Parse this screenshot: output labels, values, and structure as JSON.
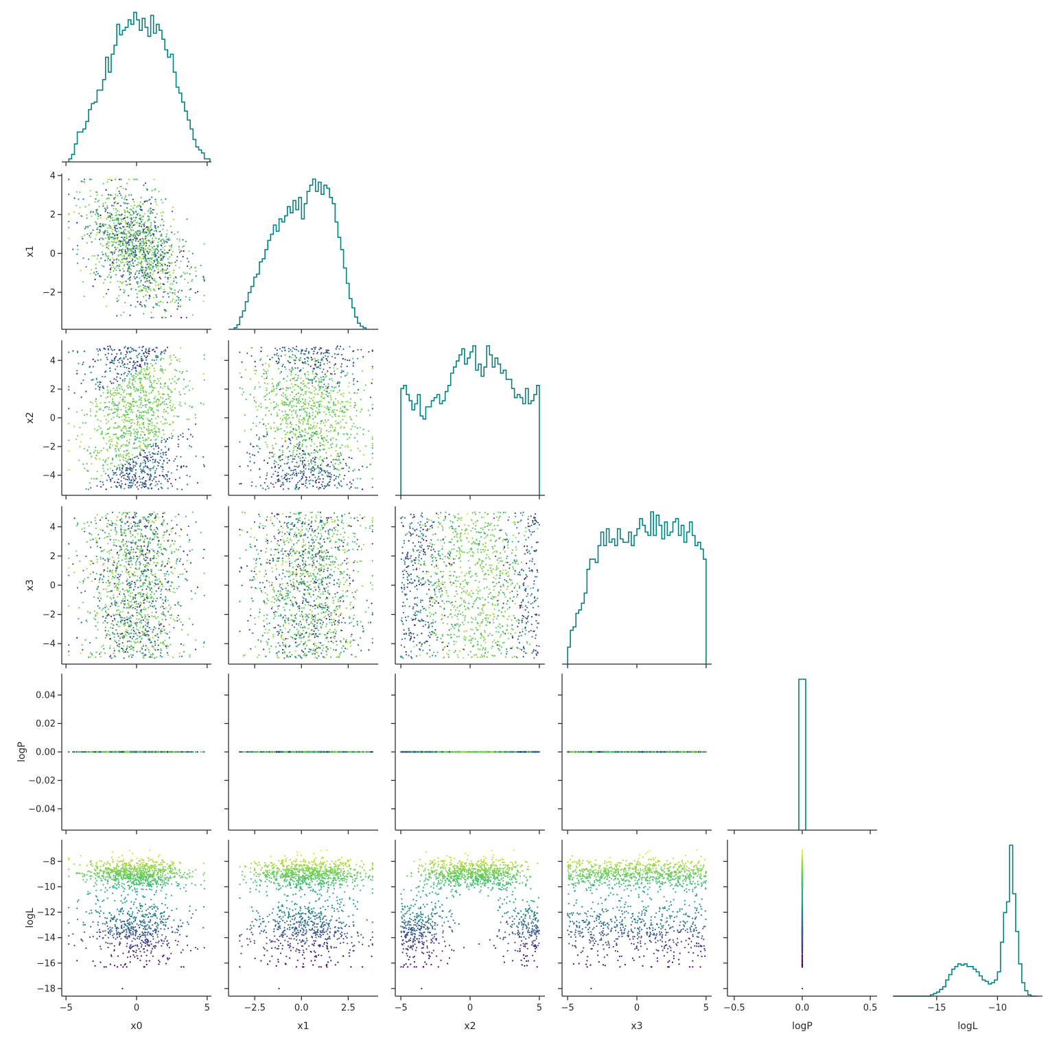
{
  "chart_data": {
    "type": "corner-plot",
    "variables": [
      "x0",
      "x1",
      "x2",
      "x3",
      "logP",
      "logL"
    ],
    "colors": {
      "histogram": "#008080",
      "scatter_colormap": "viridis",
      "scatter_color_variable": "logL",
      "axes": "#262626"
    },
    "axes": {
      "x0": {
        "range": [
          -5.3,
          5.3
        ],
        "ticks": [
          -5,
          0,
          5
        ],
        "tick_labels": [
          "−5",
          "0",
          "5"
        ]
      },
      "x1": {
        "range": [
          -3.9,
          4.1
        ],
        "ticks": [
          -2.5,
          0,
          2.5
        ],
        "tick_labels": [
          "−2.5",
          "0.0",
          "2.5"
        ],
        "row_ticks": [
          -2,
          0,
          2,
          4
        ],
        "row_tick_labels": [
          "−2",
          "0",
          "2",
          "4"
        ]
      },
      "x2": {
        "range": [
          -5.4,
          5.4
        ],
        "ticks": [
          -5,
          0,
          5
        ],
        "tick_labels": [
          "−5",
          "0",
          "5"
        ],
        "row_ticks": [
          -4,
          -2,
          0,
          2,
          4
        ],
        "row_tick_labels": [
          "−4",
          "−2",
          "0",
          "2",
          "4"
        ]
      },
      "x3": {
        "range": [
          -5.4,
          5.4
        ],
        "ticks": [
          -5,
          0,
          5
        ],
        "tick_labels": [
          "−5",
          "0",
          "5"
        ],
        "row_ticks": [
          -4,
          -2,
          0,
          2,
          4
        ],
        "row_tick_labels": [
          "−4",
          "−2",
          "0",
          "2",
          "4"
        ]
      },
      "logP": {
        "range": [
          -0.55,
          0.55
        ],
        "ticks": [
          -0.5,
          0,
          0.5
        ],
        "tick_labels": [
          "−0.5",
          "0.0",
          "0.5"
        ],
        "row_range": [
          -0.055,
          0.055
        ],
        "row_ticks": [
          -0.04,
          -0.02,
          0,
          0.02,
          0.04
        ],
        "row_tick_labels": [
          "−0.04",
          "−0.02",
          "0.00",
          "0.02",
          "0.04"
        ]
      },
      "logL": {
        "range": [
          -18.6,
          -6.3
        ],
        "ticks": [
          -15,
          -10
        ],
        "tick_labels": [
          "−15",
          "−10"
        ],
        "row_ticks": [
          -18,
          -16,
          -14,
          -12,
          -10,
          -8
        ],
        "row_tick_labels": [
          "−18",
          "−16",
          "−14",
          "−12",
          "−10",
          "−8"
        ]
      }
    },
    "histograms": {
      "x0": {
        "bin_start": -4.8,
        "bin_width": 0.2,
        "counts": [
          2,
          5,
          12,
          20,
          20,
          22,
          27,
          35,
          39,
          40,
          48,
          48,
          55,
          70,
          60,
          72,
          78,
          92,
          85,
          88,
          90,
          95,
          92,
          100,
          95,
          88,
          96,
          90,
          84,
          98,
          86,
          92,
          88,
          82,
          75,
          70,
          72,
          60,
          50,
          46,
          40,
          34,
          28,
          22,
          15,
          10,
          8,
          6,
          2,
          2
        ]
      },
      "x1": {
        "bin_start": -3.6,
        "bin_width": 0.15,
        "counts": [
          1,
          3,
          8,
          12,
          18,
          24,
          28,
          34,
          36,
          44,
          46,
          52,
          58,
          62,
          68,
          64,
          72,
          70,
          74,
          80,
          76,
          84,
          78,
          86,
          72,
          82,
          90,
          94,
          98,
          90,
          96,
          88,
          94,
          92,
          86,
          82,
          70,
          60,
          52,
          40,
          30,
          20,
          14,
          8,
          4,
          2,
          1
        ]
      },
      "x2": {
        "bin_start": -5.0,
        "bin_width": 0.2,
        "counts": [
          70,
          72,
          66,
          62,
          56,
          60,
          66,
          52,
          50,
          58,
          58,
          62,
          64,
          66,
          60,
          62,
          68,
          72,
          80,
          84,
          88,
          92,
          96,
          86,
          90,
          94,
          98,
          82,
          86,
          78,
          84,
          98,
          92,
          84,
          90,
          86,
          80,
          82,
          76,
          76,
          70,
          64,
          66,
          64,
          60,
          70,
          60,
          62,
          66,
          72
        ]
      },
      "x3": {
        "bin_start": -5.0,
        "bin_width": 0.2,
        "counts": [
          10,
          20,
          22,
          30,
          32,
          36,
          42,
          56,
          62,
          62,
          60,
          70,
          78,
          70,
          80,
          72,
          74,
          70,
          80,
          74,
          72,
          72,
          78,
          70,
          76,
          80,
          86,
          82,
          78,
          76,
          90,
          76,
          88,
          82,
          74,
          84,
          76,
          78,
          84,
          86,
          76,
          82,
          72,
          78,
          84,
          76,
          70,
          72,
          68,
          62
        ]
      },
      "logP": {
        "bin_start": -0.025,
        "bin_width": 0.05,
        "counts": [
          5000
        ]
      },
      "logL": {
        "bin_start": -18.5,
        "bin_width": 0.25,
        "counts": [
          0,
          0,
          0,
          0,
          0,
          0,
          0,
          0,
          0,
          0,
          0,
          0,
          1,
          2,
          3,
          5,
          7,
          12,
          16,
          20,
          22,
          24,
          23,
          24,
          22,
          22,
          20,
          18,
          15,
          12,
          11,
          9,
          10,
          12,
          18,
          40,
          62,
          70,
          112,
          76,
          48,
          24,
          10,
          4,
          1,
          0,
          0
        ]
      }
    },
    "scatter": {
      "n_points_per_panel": 5000,
      "marker_size": 2,
      "model": {
        "x0": "normal(0, 1.8) clipped to [-4.8, 4.8]",
        "x1": "uniform(-3.3, 3.8), correlated with x0 (coef -0.3)",
        "x2": "uniform(-5, 5)",
        "x3": "uniform(-5, 5)",
        "logP": "0.0 for all samples",
        "logL": "high mode near -8.8 inside band |x2 - 0.6*x0| < 3, low mode near -13.5 outside"
      },
      "outlier": {
        "x0": -1.0,
        "x1": -1.2,
        "x2": -3.5,
        "x3": -3.3,
        "logP": 0.0,
        "logL": -18.0
      }
    }
  }
}
